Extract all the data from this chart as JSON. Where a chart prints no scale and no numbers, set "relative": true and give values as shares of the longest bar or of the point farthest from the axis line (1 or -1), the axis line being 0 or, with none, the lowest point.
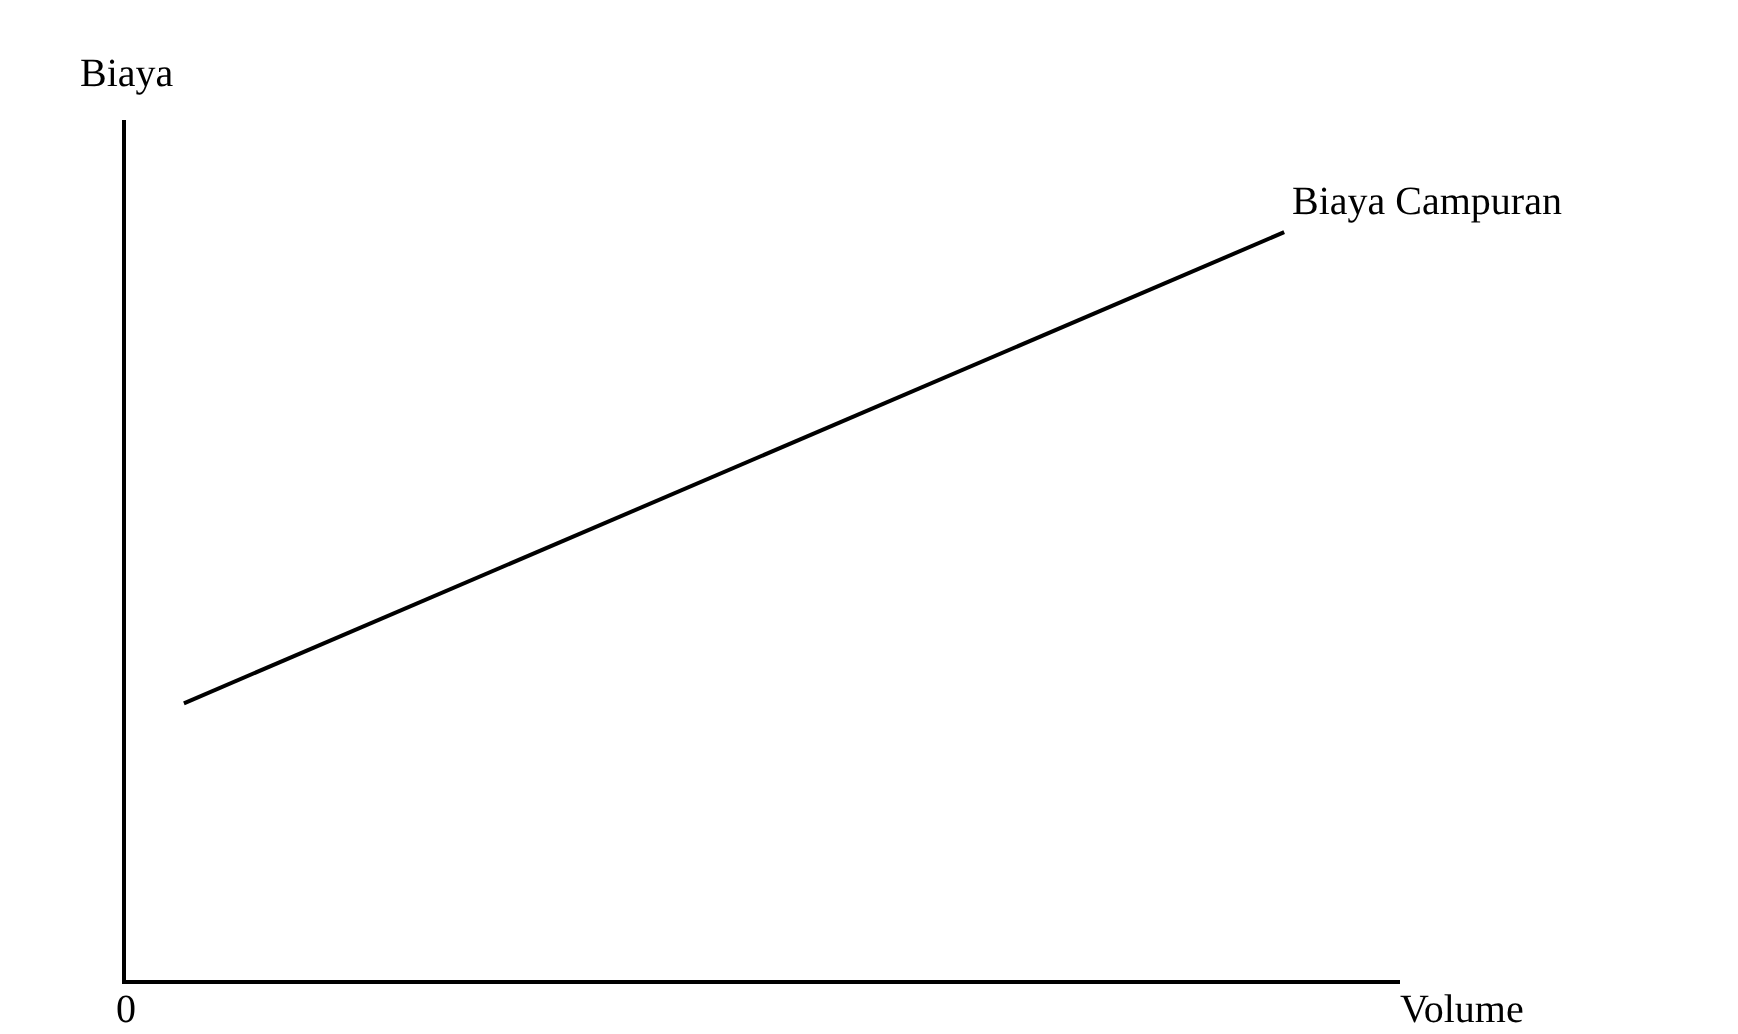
{
  "chart_data": {
    "type": "line",
    "relative": true,
    "xlabel": "Volume",
    "ylabel": "Biaya",
    "annotations": [
      "0"
    ],
    "categories": [
      null,
      null,
      null,
      null,
      null,
      null,
      null,
      null,
      null,
      null,
      null,
      null,
      null,
      null,
      null,
      null,
      null,
      null,
      null,
      null,
      null,
      null,
      null
    ],
    "series": [
      {
        "name": "Biaya Campuran",
        "color": "#000000",
        "values": [
          null,
          0.37,
          null,
          null,
          null,
          null,
          null,
          null,
          null,
          null,
          null,
          null,
          null,
          null,
          null,
          null,
          null,
          null,
          null,
          null,
          1,
          null,
          null
        ]
      }
    ],
    "grid": false,
    "legend": false,
    "marker": "none",
    "line_style": "solid"
  }
}
